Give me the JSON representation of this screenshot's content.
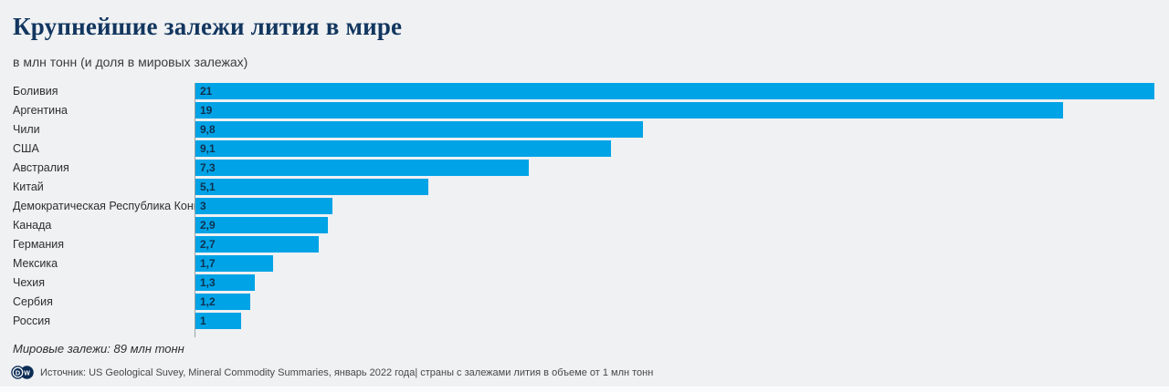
{
  "header": {
    "title": "Крупнейшие залежи лития в мире",
    "subtitle": "в млн тонн (и доля в мировых залежах)"
  },
  "chart_data": {
    "type": "bar",
    "orientation": "horizontal",
    "title": "Крупнейшие залежи лития в мире",
    "unit_note": "в млн тонн (и доля в мировых залежах)",
    "categories": [
      "Боливия",
      "Аргентина",
      "Чили",
      "США",
      "Австралия",
      "Китай",
      "Демократическая Республика Конго",
      "Канада",
      "Германия",
      "Мексика",
      "Чехия",
      "Сербия",
      "Россия"
    ],
    "values": [
      21,
      19,
      9.8,
      9.1,
      7.3,
      5.1,
      3,
      2.9,
      2.7,
      1.7,
      1.3,
      1.2,
      1
    ],
    "value_labels": [
      "21",
      "19",
      "9,8",
      "9,1",
      "7,3",
      "5,1",
      "3",
      "2,9",
      "2,7",
      "1,7",
      "1,3",
      "1,2",
      "1"
    ],
    "xlim": [
      0,
      21
    ],
    "unit": "млн тонн",
    "world_total": "89 млн тонн",
    "bar_color": "#00a3e6",
    "grid": "off",
    "legend": "none"
  },
  "footer": {
    "note": "Мировые залежи: 89 млн тонн",
    "source": "Источник: US Geological Suvey, Mineral Commodity Summaries, январь 2022 года| страны с залежами лития в объеме от 1 млн тонн",
    "logo": "dw-logo"
  },
  "colors": {
    "background": "#eff1f3",
    "bar": "#00a3e6",
    "title": "#12365f",
    "axis_line": "#98a2a8",
    "value_label": "#0f3150"
  }
}
